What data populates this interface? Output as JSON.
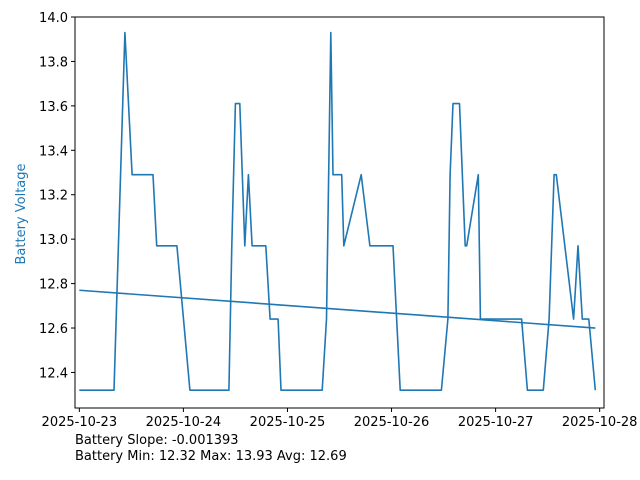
{
  "chart_data": {
    "type": "line",
    "title": "",
    "xlabel": "",
    "ylabel": "Battery Voltage",
    "ylim": [
      12.24,
      14.0
    ],
    "xlim": [
      "2025-10-22T23:00",
      "2025-10-28T01:00"
    ],
    "xticks": [
      "2025-10-23",
      "2025-10-24",
      "2025-10-25",
      "2025-10-26",
      "2025-10-27",
      "2025-10-28"
    ],
    "yticks": [
      "12.4",
      "12.6",
      "12.8",
      "13.0",
      "13.2",
      "13.4",
      "13.6",
      "13.8",
      "14.0"
    ],
    "grid": false,
    "colors": {
      "line": "#1f77b4",
      "axis": "#000000",
      "ylabel": "#1f77b4"
    },
    "series": [
      {
        "x": [
          "2025-10-23T00:00",
          "2025-10-23T06:00",
          "2025-10-23T08:00",
          "2025-10-23T10:30",
          "2025-10-23T12:10",
          "2025-10-23T15:00",
          "2025-10-23T17:00",
          "2025-10-23T17:50",
          "2025-10-23T19:00",
          "2025-10-23T22:00",
          "2025-10-23T22:30",
          "2025-10-24T01:30",
          "2025-10-24T01:50",
          "2025-10-24T03:00",
          "2025-10-24T04:00",
          "2025-10-24T10:30",
          "2025-10-24T11:10",
          "2025-10-24T12:00",
          "2025-10-24T12:20",
          "2025-10-24T13:00",
          "2025-10-24T14:10",
          "2025-10-24T15:00",
          "2025-10-24T15:50",
          "2025-10-24T16:10",
          "2025-10-24T19:00",
          "2025-10-24T20:00",
          "2025-10-24T20:20",
          "2025-10-24T21:50",
          "2025-10-24T22:30",
          "2025-10-25T02:30",
          "2025-10-25T03:20",
          "2025-10-25T04:30",
          "2025-10-25T07:20",
          "2025-10-25T07:30",
          "2025-10-25T08:00",
          "2025-10-25T09:00",
          "2025-10-25T10:00",
          "2025-10-25T10:30",
          "2025-10-25T12:30",
          "2025-10-25T13:00",
          "2025-10-25T17:00",
          "2025-10-25T19:00",
          "2025-10-25T19:30",
          "2025-10-26T00:20",
          "2025-10-26T02:00",
          "2025-10-26T07:00",
          "2025-10-26T07:20",
          "2025-10-26T08:00",
          "2025-10-26T09:00",
          "2025-10-26T09:30",
          "2025-10-26T11:30",
          "2025-10-26T13:00",
          "2025-10-26T13:30",
          "2025-10-26T14:10",
          "2025-10-26T15:40",
          "2025-10-26T17:00",
          "2025-10-26T17:20",
          "2025-10-26T20:00",
          "2025-10-26T20:30",
          "2025-10-27T06:00",
          "2025-10-27T07:20",
          "2025-10-27T08:00",
          "2025-10-27T10:30",
          "2025-10-27T11:00",
          "2025-10-27T12:20",
          "2025-10-27T13:30",
          "2025-10-27T14:00",
          "2025-10-27T18:00",
          "2025-10-27T19:00",
          "2025-10-27T20:00",
          "2025-10-27T21:30",
          "2025-10-27T23:00"
        ],
        "values": [
          12.32,
          12.32,
          12.32,
          13.93,
          13.29,
          13.29,
          13.29,
          12.97,
          12.97,
          12.97,
          12.97,
          12.32,
          12.32,
          12.32,
          12.32,
          12.32,
          12.97,
          13.61,
          13.61,
          13.61,
          12.97,
          13.29,
          12.97,
          12.97,
          12.97,
          12.64,
          12.64,
          12.64,
          12.32,
          12.32,
          12.32,
          12.32,
          12.32,
          12.32,
          12.32,
          12.64,
          13.93,
          13.29,
          13.29,
          12.97,
          13.29,
          12.97,
          12.97,
          12.97,
          12.32,
          12.32,
          12.32,
          12.32,
          12.32,
          12.32,
          12.32,
          12.64,
          13.29,
          13.61,
          13.61,
          12.97,
          12.97,
          13.29,
          12.64,
          12.64,
          12.32,
          12.32,
          12.32,
          12.32,
          12.64,
          13.29,
          13.29,
          12.64,
          12.97,
          12.64,
          12.64,
          12.32
        ],
        "trend": [
          12.77,
          12.6
        ]
      }
    ]
  },
  "notes": {
    "slope": "Battery Slope: -0.001393",
    "stats": "Battery Min: 12.32 Max: 13.93 Avg: 12.69"
  }
}
